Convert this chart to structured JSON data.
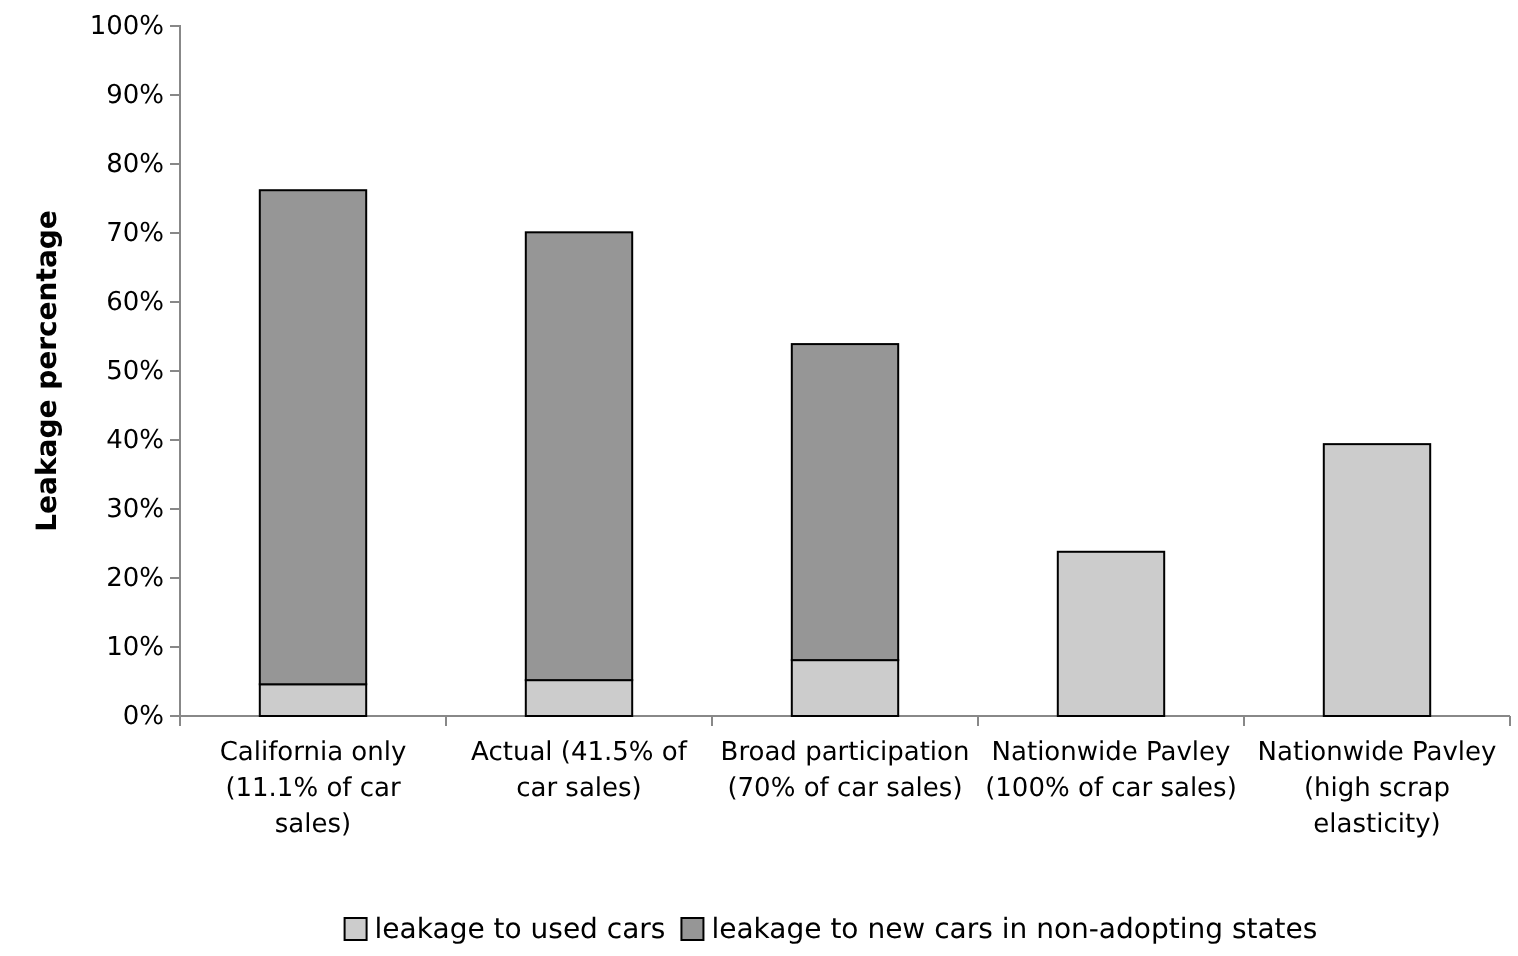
{
  "chart_data": {
    "type": "bar",
    "stacked": true,
    "ylabel": "Leakage percentage",
    "categories": [
      "California only (11.1% of car sales)",
      "Actual (41.5% of car sales)",
      "Broad participation (70% of car sales)",
      "Nationwide Pavley (100% of car sales)",
      "Nationwide Pavley (high scrap elasticity)"
    ],
    "series": [
      {
        "name": "leakage to used cars",
        "color": "#cccccc",
        "values": [
          4.6,
          5.2,
          8.1,
          23.8,
          39.4
        ]
      },
      {
        "name": "leakage to new cars in non-adopting states",
        "color": "#969696",
        "values": [
          71.6,
          64.9,
          45.8,
          null,
          null
        ]
      }
    ],
    "ylim": [
      0,
      100
    ],
    "yticks": [
      {
        "value": 0,
        "label": "0%"
      },
      {
        "value": 10,
        "label": "10%"
      },
      {
        "value": 20,
        "label": "20%"
      },
      {
        "value": 30,
        "label": "30%"
      },
      {
        "value": 40,
        "label": "40%"
      },
      {
        "value": 50,
        "label": "50%"
      },
      {
        "value": 60,
        "label": "60%"
      },
      {
        "value": 70,
        "label": "70%"
      },
      {
        "value": 80,
        "label": "80%"
      },
      {
        "value": 90,
        "label": "90%"
      },
      {
        "value": 100,
        "label": "100%"
      }
    ],
    "legend": "bottom",
    "grid": false
  }
}
